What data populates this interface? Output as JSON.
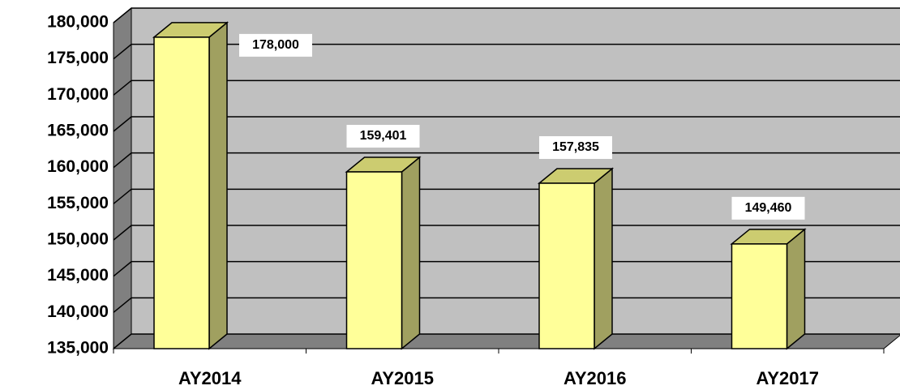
{
  "chart_data": {
    "type": "bar",
    "categories": [
      "AY2014",
      "AY2015",
      "AY2016",
      "AY2017"
    ],
    "values": [
      178000,
      159401,
      157835,
      149460
    ],
    "value_labels": [
      "178,000",
      "159,401",
      "157,835",
      "149,460"
    ],
    "color": "#ffff99",
    "ylim": [
      135000,
      180000
    ],
    "yticks": [
      {
        "value": 135000,
        "label": "135,000"
      },
      {
        "value": 140000,
        "label": "140,000"
      },
      {
        "value": 145000,
        "label": "145,000"
      },
      {
        "value": 150000,
        "label": "150,000"
      },
      {
        "value": 155000,
        "label": "155,000"
      },
      {
        "value": 160000,
        "label": "160,000"
      },
      {
        "value": 165000,
        "label": "165,000"
      },
      {
        "value": 170000,
        "label": "170,000"
      },
      {
        "value": 175000,
        "label": "175,000"
      },
      {
        "value": 180000,
        "label": "180,000"
      }
    ],
    "grid": true
  }
}
